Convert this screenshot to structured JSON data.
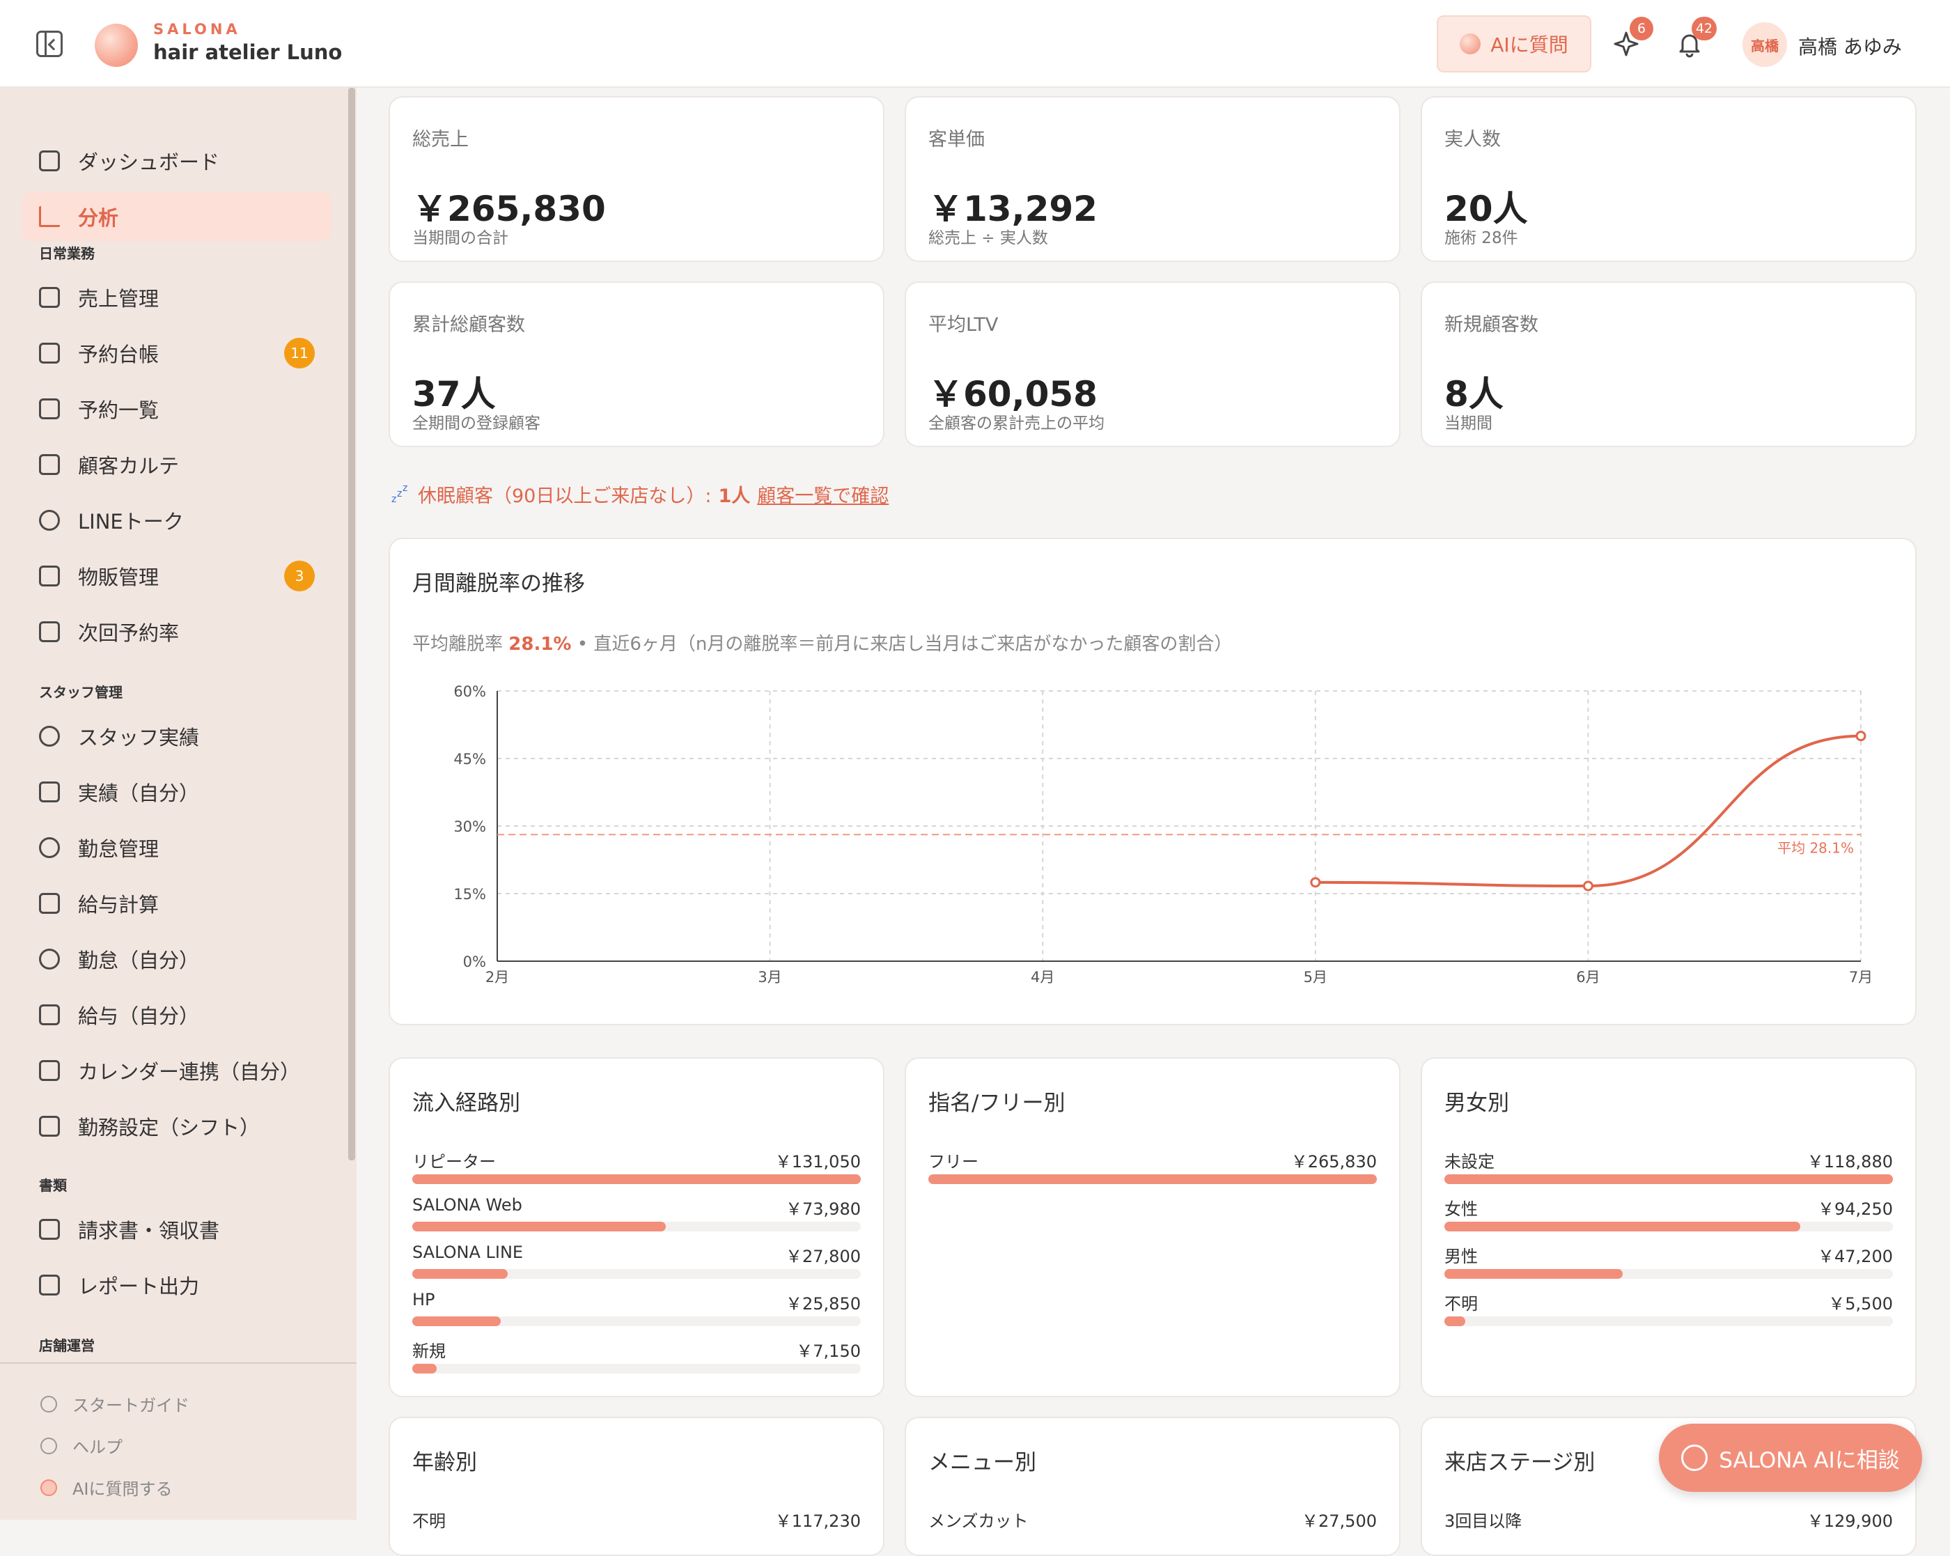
{
  "header": {
    "brand_top": "SALONA",
    "brand_name": "hair atelier Luno",
    "ai_button": "AIに質問",
    "sparkle_badge": "6",
    "bell_badge": "42",
    "avatar_text": "高橋",
    "user_name": "高橋 あゆみ"
  },
  "sidebar": {
    "top_items": [
      {
        "label": "ダッシュボード",
        "icon": "grid-icon"
      },
      {
        "label": "分析",
        "icon": "bar-chart-icon",
        "active": true
      }
    ],
    "sections": [
      {
        "title": "日常業務",
        "items": [
          {
            "label": "売上管理",
            "icon": "receipt-icon"
          },
          {
            "label": "予約台帳",
            "icon": "calendar-icon",
            "badge": "11"
          },
          {
            "label": "予約一覧",
            "icon": "inbox-icon"
          },
          {
            "label": "顧客カルテ",
            "icon": "clipboard-icon"
          },
          {
            "label": "LINEトーク",
            "icon": "chat-icon"
          },
          {
            "label": "物販管理",
            "icon": "box-icon",
            "badge": "3"
          },
          {
            "label": "次回予約率",
            "icon": "calendar-check-icon"
          }
        ]
      },
      {
        "title": "スタッフ管理",
        "items": [
          {
            "label": "スタッフ実績",
            "icon": "users-icon"
          },
          {
            "label": "実績（自分）",
            "icon": "trend-icon"
          },
          {
            "label": "勤怠管理",
            "icon": "clock-icon"
          },
          {
            "label": "給与計算",
            "icon": "wallet-icon"
          },
          {
            "label": "勤怠（自分）",
            "icon": "clock-icon"
          },
          {
            "label": "給与（自分）",
            "icon": "wallet-icon"
          },
          {
            "label": "カレンダー連携（自分）",
            "icon": "calendar-icon"
          },
          {
            "label": "勤務設定（シフト）",
            "icon": "calendar-clock-icon"
          }
        ]
      },
      {
        "title": "書類",
        "items": [
          {
            "label": "請求書・領収書",
            "icon": "document-check-icon"
          },
          {
            "label": "レポート出力",
            "icon": "document-icon"
          }
        ]
      },
      {
        "title": "店舗運営",
        "items": []
      }
    ],
    "bottom": [
      {
        "label": "スタートガイド",
        "icon": "sprout-icon"
      },
      {
        "label": "ヘルプ",
        "icon": "help-icon"
      },
      {
        "label": "AIに質問する",
        "icon": "ai-icon"
      }
    ]
  },
  "kpis": [
    {
      "label": "総売上",
      "value": "￥265,830",
      "sub": "当期間の合計"
    },
    {
      "label": "客単価",
      "value": "￥13,292",
      "sub": "総売上 ÷ 実人数"
    },
    {
      "label": "実人数",
      "value": "20人",
      "sub": "施術 28件"
    },
    {
      "label": "累計総顧客数",
      "value": "37人",
      "sub": "全期間の登録顧客"
    },
    {
      "label": "平均LTV",
      "value": "￥60,058",
      "sub": "全顧客の累計売上の平均"
    },
    {
      "label": "新規顧客数",
      "value": "8人",
      "sub": "当期間"
    }
  ],
  "dormant": {
    "text": "休眠顧客（90日以上ご来店なし）: ",
    "count": "1人",
    "link": "顧客一覧で確認"
  },
  "churn": {
    "title": "月間離脱率の推移",
    "note_prefix": "平均離脱率",
    "note_value": "28.1%",
    "note_suffix": " •  直近6ヶ月（n月の離脱率＝前月に来店し当月はご来店がなかった顧客の割合）"
  },
  "chart_data": {
    "type": "line",
    "title": "月間離脱率の推移",
    "x": [
      "2月",
      "3月",
      "4月",
      "5月",
      "6月",
      "7月"
    ],
    "series": [
      {
        "values": [
          null,
          null,
          null,
          17.5,
          16.7,
          50.0
        ]
      }
    ],
    "yticks": [
      "0%",
      "15%",
      "30%",
      "45%",
      "60%"
    ],
    "ylim": [
      0,
      60
    ],
    "average": 28.1,
    "average_label": "平均 28.1%",
    "grid": true,
    "line_color": "#e0664b"
  },
  "breakdowns": [
    {
      "title": "流入経路別",
      "rows": [
        {
          "label": "リピーター",
          "value": "￥131,050",
          "ratio": 1.0
        },
        {
          "label": "SALONA Web",
          "value": "￥73,980",
          "ratio": 0.5645
        },
        {
          "label": "SALONA LINE",
          "value": "￥27,800",
          "ratio": 0.2121
        },
        {
          "label": "HP",
          "value": "￥25,850",
          "ratio": 0.1973
        },
        {
          "label": "新規",
          "value": "￥7,150",
          "ratio": 0.0546
        }
      ]
    },
    {
      "title": "指名/フリー別",
      "rows": [
        {
          "label": "フリー",
          "value": "￥265,830",
          "ratio": 1.0
        }
      ]
    },
    {
      "title": "男女別",
      "rows": [
        {
          "label": "未設定",
          "value": "￥118,880",
          "ratio": 1.0
        },
        {
          "label": "女性",
          "value": "￥94,250",
          "ratio": 0.7928
        },
        {
          "label": "男性",
          "value": "￥47,200",
          "ratio": 0.397
        },
        {
          "label": "不明",
          "value": "￥5,500",
          "ratio": 0.0463
        }
      ]
    }
  ],
  "bottom_cards": [
    {
      "title": "年齢別",
      "first_label": "不明",
      "first_value": "￥117,230"
    },
    {
      "title": "メニュー別",
      "first_label": "メンズカット",
      "first_value": "￥27,500"
    },
    {
      "title": "来店ステージ別",
      "first_label": "3回目以降",
      "first_value": "￥129,900"
    }
  ],
  "consult_button": "SALONA AIに相談"
}
